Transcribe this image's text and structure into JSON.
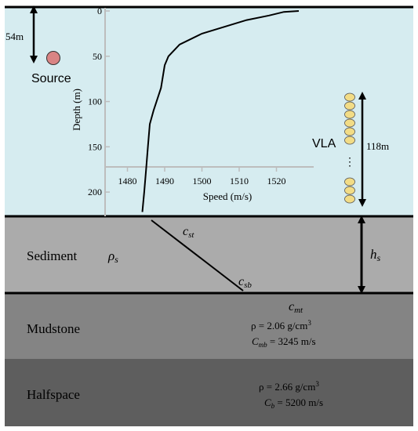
{
  "water": {
    "source_label": "Source",
    "source_depth_label": "54m",
    "vla_label": "VLA",
    "vla_dots": "⋮",
    "vla_length_label": "118m",
    "colors": {
      "water": "#d6ecf0",
      "source": "#d98484",
      "hydrophone": "#f2dc86"
    },
    "hydrophone_count": 10
  },
  "profile_chart": {
    "ylabel": "Depth (m)",
    "xlabel": "Speed (m/s)",
    "y_ticks": [
      "0",
      "50",
      "100",
      "150",
      "200"
    ],
    "x_ticks": [
      "1480",
      "1490",
      "1500",
      "1510",
      "1520"
    ],
    "chart_data": {
      "type": "line",
      "xlabel": "Speed (m/s)",
      "ylabel": "Depth (m)",
      "xlim": [
        1474,
        1530
      ],
      "ylim": [
        0,
        225
      ],
      "series": [
        {
          "x": [
            1526,
            1522,
            1518,
            1512,
            1500,
            1494,
            1491,
            1490,
            1489,
            1487,
            1486,
            1485.5,
            1485,
            1484.5,
            1484
          ],
          "y": [
            0,
            1,
            5,
            10,
            25,
            37,
            50,
            60,
            85,
            110,
            125,
            150,
            175,
            200,
            222
          ]
        }
      ]
    }
  },
  "sediment": {
    "label": "Sediment",
    "rho_label": "ρ",
    "rho_sub": "s",
    "cst_label": "c",
    "cst_sub": "st",
    "csb_label": "c",
    "csb_sub": "sb",
    "h_label": "h",
    "h_sub": "s",
    "color": "#ababab"
  },
  "mudstone": {
    "label": "Mudstone",
    "cmt_label": "c",
    "cmt_sub": "mt",
    "density_text": "ρ = 2.06 g/cm",
    "density_sup": "3",
    "cmb_label": "C",
    "cmb_sub": "mb",
    "cmb_value": " = 3245 m/s",
    "color": "#848484"
  },
  "halfspace": {
    "label": "Halfspace",
    "density_text": "ρ = 2.66 g/cm",
    "density_sup": "3",
    "cb_label": "C",
    "cb_sub": "b",
    "cb_value": " = 5200 m/s",
    "color": "#5e5e5e"
  }
}
